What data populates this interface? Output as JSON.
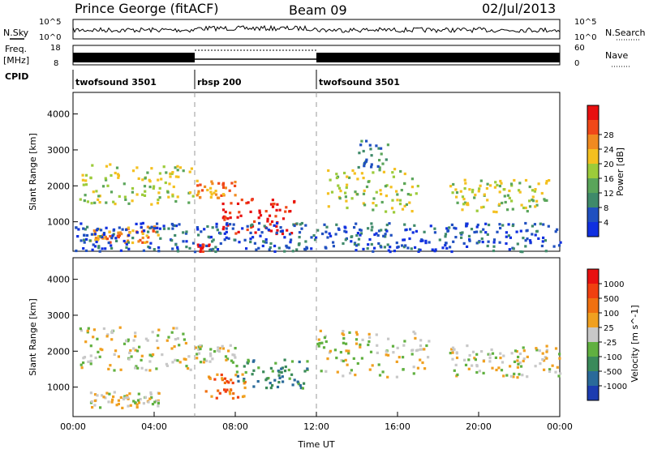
{
  "header": {
    "station": "Prince George (fitACF)",
    "beam": "Beam 09",
    "date": "02/Jul/2013"
  },
  "side_labels": {
    "nsky": "N.Sky",
    "nsearch": "N.Search",
    "freq_line1": "Freq.",
    "freq_line2": "[MHz]",
    "nave": "Nave",
    "cpid": "CPID"
  },
  "noise_panel": {
    "left_ticks": [
      "10^5",
      "10^0"
    ],
    "right_ticks": [
      "10^5",
      "10^0"
    ]
  },
  "freq_panel": {
    "left_ticks": [
      "18",
      "8"
    ],
    "right_ticks": [
      "60",
      "0"
    ]
  },
  "cpid_segments": [
    {
      "label": "twofsound 3501",
      "start_h": 0,
      "end_h": 6
    },
    {
      "label": "rbsp 200",
      "start_h": 6,
      "end_h": 12
    },
    {
      "label": "twofsound 3501",
      "start_h": 12,
      "end_h": 24
    }
  ],
  "x_axis": {
    "label": "Time UT",
    "ticks": [
      "00:00",
      "04:00",
      "08:00",
      "12:00",
      "16:00",
      "20:00",
      "00:00"
    ],
    "range_h": [
      0,
      24
    ]
  },
  "chart_data": [
    {
      "type": "heatmap",
      "title": "",
      "xlabel": "",
      "ylabel": "Slant Range [km]",
      "yticks": [
        "1000",
        "2000",
        "3000",
        "4000"
      ],
      "ylim": [
        180,
        4600
      ],
      "xlim_h": [
        0,
        24
      ],
      "colorbar_label": "Power [dB]",
      "colorbar_ticks": [
        "4",
        "8",
        "12",
        "16",
        "20",
        "24",
        "28"
      ],
      "colorbar_colors": [
        "#1030e0",
        "#2050c0",
        "#3f8a6a",
        "#5aa55a",
        "#9ccb3a",
        "#f4c020",
        "#f08a20",
        "#f04818",
        "#e81010"
      ],
      "regions": [
        {
          "h0": 0.3,
          "h1": 5.9,
          "r0": 1500,
          "r1": 2700,
          "level": 4
        },
        {
          "h0": 0.8,
          "h1": 4.2,
          "r0": 450,
          "r1": 900,
          "level": 6
        },
        {
          "h0": 6.0,
          "h1": 8.0,
          "r0": 1700,
          "r1": 2200,
          "level": 6
        },
        {
          "h0": 7.2,
          "h1": 11.0,
          "r0": 700,
          "r1": 1700,
          "level": 8
        },
        {
          "h0": 6.0,
          "h1": 6.7,
          "r0": 200,
          "r1": 400,
          "level": 8
        },
        {
          "h0": 12.5,
          "h1": 17.0,
          "r0": 1300,
          "r1": 2500,
          "level": 4
        },
        {
          "h0": 14.0,
          "h1": 15.5,
          "r0": 2500,
          "r1": 3300,
          "level": 2
        },
        {
          "h0": 18.5,
          "h1": 23.5,
          "r0": 1300,
          "r1": 2200,
          "level": 4
        },
        {
          "h0": 0.0,
          "h1": 24.0,
          "r0": 200,
          "r1": 1000,
          "level": 1
        }
      ]
    },
    {
      "type": "heatmap",
      "title": "",
      "xlabel": "Time UT",
      "ylabel": "Slant Range [km]",
      "yticks": [
        "1000",
        "2000",
        "3000",
        "4000"
      ],
      "ylim": [
        180,
        4600
      ],
      "xlim_h": [
        0,
        24
      ],
      "colorbar_label": "Velocity [m s^-1]",
      "colorbar_ticks": [
        "1000",
        "500",
        "100",
        "25",
        "-25",
        "-100",
        "-500",
        "-1000"
      ],
      "colorbar_colors": [
        "#1c3cb0",
        "#2a6a9a",
        "#3a8a5a",
        "#60b040",
        "#c8c8c8",
        "#f0a020",
        "#f07010",
        "#f04010",
        "#e81010"
      ],
      "regions": [
        {
          "h0": 0.3,
          "h1": 6.0,
          "r0": 1500,
          "r1": 2700,
          "level": 4
        },
        {
          "h0": 0.8,
          "h1": 4.2,
          "r0": 450,
          "r1": 900,
          "level": 4
        },
        {
          "h0": 6.0,
          "h1": 8.0,
          "r0": 1700,
          "r1": 2200,
          "level": 4
        },
        {
          "h0": 6.5,
          "h1": 8.5,
          "r0": 700,
          "r1": 1400,
          "level": 6
        },
        {
          "h0": 8.0,
          "h1": 11.5,
          "r0": 1000,
          "r1": 1800,
          "level": 2
        },
        {
          "h0": 12.0,
          "h1": 17.5,
          "r0": 1300,
          "r1": 2600,
          "level": 4
        },
        {
          "h0": 18.5,
          "h1": 24.0,
          "r0": 1300,
          "r1": 2200,
          "level": 4
        }
      ]
    }
  ]
}
